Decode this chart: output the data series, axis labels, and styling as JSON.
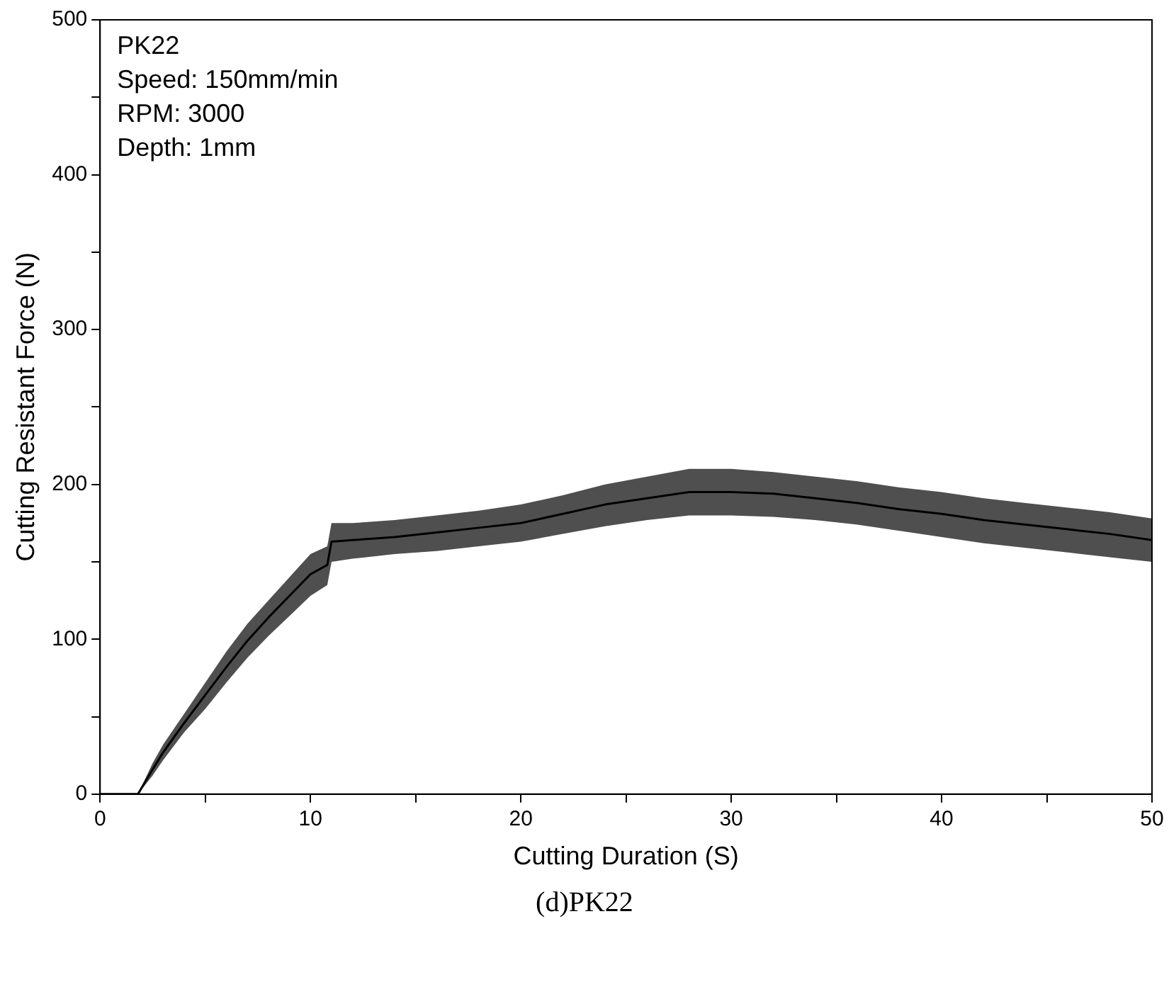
{
  "chart_data": {
    "type": "line",
    "xlabel": "Cutting Duration (S)",
    "ylabel": "Cutting Resistant Force (N)",
    "annotations": [
      "PK22",
      "Speed: 150mm/min",
      "RPM: 3000",
      "Depth: 1mm",
      "(d)PK22"
    ],
    "x": [
      0,
      1,
      1.8,
      2.5,
      3,
      4,
      5,
      6,
      7,
      8,
      9,
      10,
      10.8,
      11,
      12,
      14,
      16,
      18,
      20,
      22,
      24,
      26,
      28,
      30,
      32,
      34,
      36,
      38,
      40,
      42,
      44,
      46,
      48,
      50
    ],
    "series": [
      {
        "color": "#000000",
        "values": [
          0,
          0,
          0,
          16,
          27,
          46,
          64,
          82,
          99,
          114,
          128,
          142,
          148,
          163,
          164,
          166,
          169,
          172,
          175,
          181,
          187,
          191,
          195,
          195,
          194,
          191,
          188,
          184,
          181,
          177,
          174,
          171,
          168,
          164
        ],
        "lower": [
          0,
          0,
          0,
          12,
          22,
          40,
          55,
          72,
          88,
          102,
          115,
          128,
          135,
          150,
          152,
          155,
          157,
          160,
          163,
          168,
          173,
          177,
          180,
          180,
          179,
          177,
          174,
          170,
          166,
          162,
          159,
          156,
          153,
          150
        ],
        "upper": [
          0,
          0,
          0,
          20,
          32,
          52,
          72,
          92,
          110,
          125,
          140,
          155,
          160,
          175,
          175,
          177,
          180,
          183,
          187,
          193,
          200,
          205,
          210,
          210,
          208,
          205,
          202,
          198,
          195,
          191,
          188,
          185,
          182,
          178
        ]
      }
    ],
    "xlim": [
      0,
      50
    ],
    "xticks": [
      0,
      {
        "value": 5,
        "label": null
      },
      10,
      {
        "value": 15,
        "label": null
      },
      20,
      {
        "value": 25,
        "label": null
      },
      30,
      {
        "value": 35,
        "label": null
      },
      40,
      {
        "value": 45,
        "label": null
      },
      50
    ],
    "ylim": [
      0,
      500
    ],
    "yticks": [
      0,
      {
        "value": 50,
        "label": null
      },
      100,
      {
        "value": 150,
        "label": null
      },
      200,
      {
        "value": 250,
        "label": null
      },
      300,
      {
        "value": 350,
        "label": null
      },
      400,
      {
        "value": 450,
        "label": null
      },
      500
    ],
    "grid": false,
    "legend": false,
    "marker": "none",
    "line_style": "solid"
  }
}
